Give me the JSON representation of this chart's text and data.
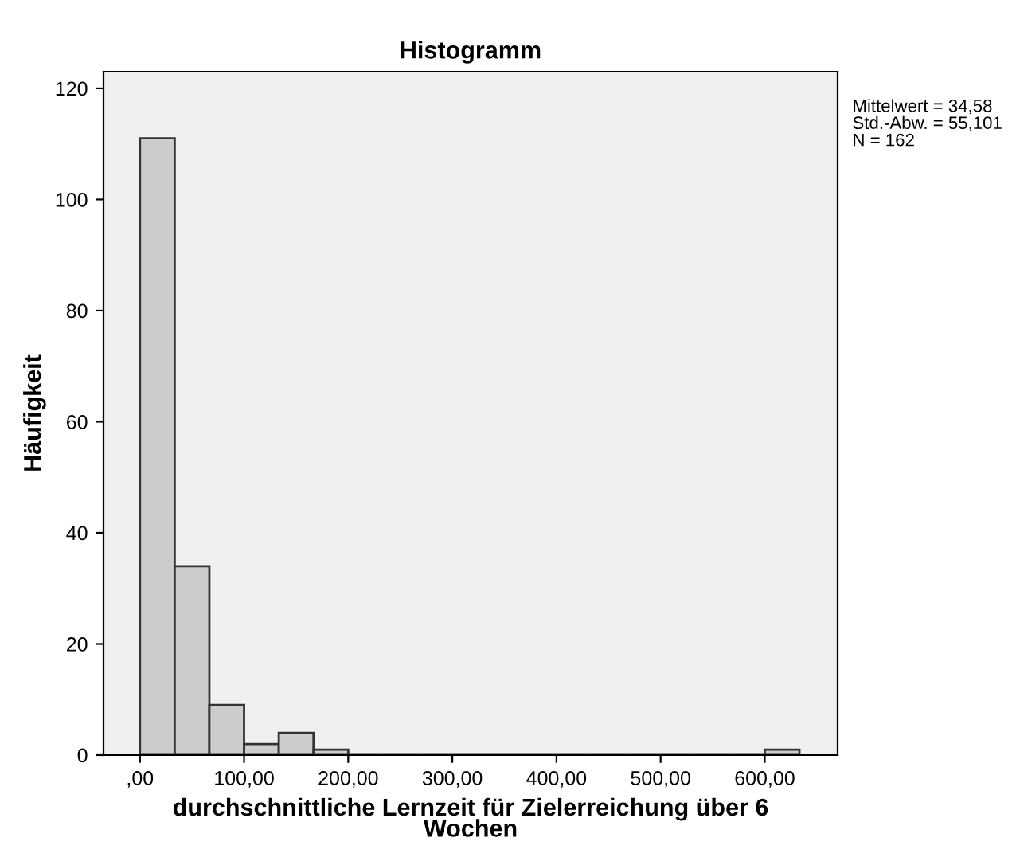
{
  "chart_data": {
    "type": "histogram",
    "title": "Histogramm",
    "xlabel": "durchschnittliche Lernzeit für Zielerreichung über 6\nWochen",
    "ylabel": "Häufigkeit",
    "bins": [
      0,
      33.33,
      66.67,
      100,
      133.33,
      166.67,
      200,
      233.33,
      266.67,
      300,
      333.33,
      366.67,
      400,
      433.33,
      466.67,
      500,
      533.33,
      566.67,
      600,
      633.33
    ],
    "values": [
      111,
      34,
      9,
      2,
      4,
      1,
      0,
      0,
      0,
      0,
      0,
      0,
      0,
      0,
      0,
      0,
      0,
      0,
      1
    ],
    "color": "#cccccc",
    "xlim": [
      -35,
      670
    ],
    "ylim": [
      0,
      123
    ],
    "xticks": [
      {
        "value": 0,
        "label": ",00"
      },
      {
        "value": 100,
        "label": "100,00"
      },
      {
        "value": 200,
        "label": "200,00"
      },
      {
        "value": 300,
        "label": "300,00"
      },
      {
        "value": 400,
        "label": "400,00"
      },
      {
        "value": 500,
        "label": "500,00"
      },
      {
        "value": 600,
        "label": "600,00"
      }
    ],
    "yticks": [
      0,
      20,
      40,
      60,
      80,
      100,
      120
    ],
    "grid": false,
    "annotations": [
      "Mittelwert = 34,58",
      "Std.-Abw. = 55,101",
      "N = 162"
    ]
  }
}
